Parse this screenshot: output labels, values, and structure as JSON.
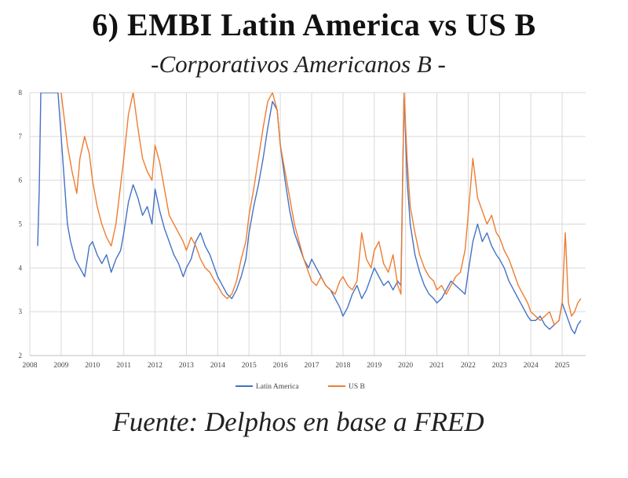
{
  "title": "6) EMBI Latin America vs US B",
  "subtitle": "-Corporativos Americanos B -",
  "source": "Fuente: Delphos en base a FRED",
  "chart_data": {
    "type": "line",
    "title": "",
    "xlabel": "",
    "ylabel": "",
    "xlim": [
      2008,
      2025.75
    ],
    "ylim": [
      2,
      8
    ],
    "xticks": [
      "2008",
      "2009",
      "2010",
      "2011",
      "2012",
      "2013",
      "2014",
      "2015",
      "2016",
      "2017",
      "2018",
      "2019",
      "2020",
      "2021",
      "2022",
      "2023",
      "2024",
      "2025"
    ],
    "yticks": [
      "2",
      "3",
      "4",
      "5",
      "6",
      "7",
      "8"
    ],
    "grid": true,
    "legend": "bottom",
    "series": [
      {
        "name": "Latin America",
        "color": "#4472C4",
        "x": [
          2008.25,
          2008.3,
          2008.35,
          2008.45,
          2008.5,
          2008.6,
          2008.75,
          2008.9,
          2009.0,
          2009.1,
          2009.2,
          2009.3,
          2009.45,
          2009.6,
          2009.75,
          2009.9,
          2010.0,
          2010.15,
          2010.3,
          2010.45,
          2010.6,
          2010.75,
          2010.9,
          2011.0,
          2011.15,
          2011.3,
          2011.45,
          2011.6,
          2011.75,
          2011.9,
          2012.0,
          2012.15,
          2012.3,
          2012.45,
          2012.6,
          2012.75,
          2012.9,
          2013.0,
          2013.15,
          2013.3,
          2013.45,
          2013.6,
          2013.75,
          2013.9,
          2014.0,
          2014.15,
          2014.3,
          2014.45,
          2014.6,
          2014.75,
          2014.9,
          2015.0,
          2015.15,
          2015.3,
          2015.45,
          2015.6,
          2015.75,
          2015.9,
          2016.0,
          2016.15,
          2016.3,
          2016.45,
          2016.6,
          2016.75,
          2016.9,
          2017.0,
          2017.15,
          2017.3,
          2017.45,
          2017.6,
          2017.75,
          2017.9,
          2018.0,
          2018.15,
          2018.3,
          2018.45,
          2018.6,
          2018.75,
          2018.9,
          2019.0,
          2019.15,
          2019.3,
          2019.45,
          2019.6,
          2019.75,
          2019.85,
          2019.95,
          2020.05,
          2020.15,
          2020.3,
          2020.45,
          2020.6,
          2020.75,
          2020.9,
          2021.0,
          2021.15,
          2021.3,
          2021.45,
          2021.6,
          2021.75,
          2021.9,
          2022.0,
          2022.15,
          2022.3,
          2022.45,
          2022.6,
          2022.75,
          2022.9,
          2023.0,
          2023.15,
          2023.3,
          2023.45,
          2023.6,
          2023.75,
          2023.9,
          2024.0,
          2024.15,
          2024.3,
          2024.45,
          2024.6,
          2024.75,
          2024.9,
          2025.0,
          2025.1,
          2025.2,
          2025.3,
          2025.4,
          2025.5,
          2025.6
        ],
        "y": [
          4.5,
          5.8,
          8.0,
          8.0,
          8.0,
          8.0,
          8.0,
          8.0,
          7.0,
          6.0,
          5.0,
          4.6,
          4.2,
          4.0,
          3.8,
          4.5,
          4.6,
          4.3,
          4.1,
          4.3,
          3.9,
          4.2,
          4.4,
          4.8,
          5.5,
          5.9,
          5.6,
          5.2,
          5.4,
          5.0,
          5.8,
          5.3,
          4.9,
          4.6,
          4.3,
          4.1,
          3.8,
          4.0,
          4.2,
          4.6,
          4.8,
          4.5,
          4.3,
          4.0,
          3.8,
          3.6,
          3.4,
          3.3,
          3.5,
          3.8,
          4.2,
          4.8,
          5.4,
          5.9,
          6.5,
          7.2,
          7.8,
          7.6,
          6.8,
          6.0,
          5.3,
          4.8,
          4.5,
          4.2,
          4.0,
          4.2,
          4.0,
          3.8,
          3.6,
          3.5,
          3.3,
          3.1,
          2.9,
          3.1,
          3.4,
          3.6,
          3.3,
          3.5,
          3.8,
          4.0,
          3.8,
          3.6,
          3.7,
          3.5,
          3.7,
          3.6,
          8.0,
          6.0,
          5.0,
          4.3,
          3.9,
          3.6,
          3.4,
          3.3,
          3.2,
          3.3,
          3.5,
          3.7,
          3.6,
          3.5,
          3.4,
          3.9,
          4.6,
          5.0,
          4.6,
          4.8,
          4.5,
          4.3,
          4.2,
          4.0,
          3.7,
          3.5,
          3.3,
          3.1,
          2.9,
          2.8,
          2.8,
          2.9,
          2.7,
          2.6,
          2.7,
          2.8,
          3.2,
          3.0,
          2.8,
          2.6,
          2.5,
          2.7,
          2.8
        ]
      },
      {
        "name": "US B",
        "color": "#ED7D31",
        "x": [
          2009.0,
          2009.1,
          2009.2,
          2009.35,
          2009.5,
          2009.6,
          2009.75,
          2009.9,
          2010.0,
          2010.15,
          2010.3,
          2010.45,
          2010.6,
          2010.75,
          2010.85,
          2011.0,
          2011.15,
          2011.3,
          2011.45,
          2011.6,
          2011.75,
          2011.9,
          2012.0,
          2012.15,
          2012.3,
          2012.45,
          2012.6,
          2012.75,
          2012.9,
          2013.0,
          2013.15,
          2013.3,
          2013.45,
          2013.6,
          2013.75,
          2013.9,
          2014.0,
          2014.15,
          2014.3,
          2014.45,
          2014.6,
          2014.75,
          2014.9,
          2015.0,
          2015.15,
          2015.3,
          2015.45,
          2015.6,
          2015.75,
          2015.9,
          2016.0,
          2016.15,
          2016.3,
          2016.45,
          2016.6,
          2016.75,
          2016.9,
          2017.0,
          2017.15,
          2017.3,
          2017.45,
          2017.6,
          2017.75,
          2017.9,
          2018.0,
          2018.15,
          2018.3,
          2018.45,
          2018.6,
          2018.75,
          2018.9,
          2019.0,
          2019.15,
          2019.3,
          2019.45,
          2019.6,
          2019.75,
          2019.85,
          2019.95,
          2020.05,
          2020.15,
          2020.3,
          2020.45,
          2020.6,
          2020.75,
          2020.9,
          2021.0,
          2021.15,
          2021.3,
          2021.45,
          2021.6,
          2021.75,
          2021.9,
          2022.0,
          2022.15,
          2022.3,
          2022.45,
          2022.6,
          2022.75,
          2022.9,
          2023.0,
          2023.15,
          2023.3,
          2023.45,
          2023.6,
          2023.75,
          2023.9,
          2024.0,
          2024.15,
          2024.3,
          2024.45,
          2024.6,
          2024.75,
          2024.9,
          2025.0,
          2025.1,
          2025.2,
          2025.3,
          2025.4,
          2025.5,
          2025.6
        ],
        "y": [
          8.0,
          7.4,
          6.8,
          6.2,
          5.7,
          6.5,
          7.0,
          6.6,
          6.0,
          5.4,
          5.0,
          4.7,
          4.5,
          5.0,
          5.6,
          6.5,
          7.5,
          8.0,
          7.2,
          6.5,
          6.2,
          6.0,
          6.8,
          6.4,
          5.8,
          5.2,
          5.0,
          4.8,
          4.6,
          4.4,
          4.7,
          4.5,
          4.2,
          4.0,
          3.9,
          3.7,
          3.6,
          3.4,
          3.3,
          3.4,
          3.7,
          4.2,
          4.6,
          5.2,
          5.8,
          6.5,
          7.2,
          7.8,
          8.0,
          7.6,
          6.8,
          6.2,
          5.6,
          5.0,
          4.6,
          4.2,
          3.9,
          3.7,
          3.6,
          3.8,
          3.6,
          3.5,
          3.4,
          3.7,
          3.8,
          3.6,
          3.5,
          3.7,
          4.8,
          4.2,
          4.0,
          4.4,
          4.6,
          4.1,
          3.9,
          4.3,
          3.6,
          3.4,
          8.0,
          6.5,
          5.4,
          4.8,
          4.3,
          4.0,
          3.8,
          3.7,
          3.5,
          3.6,
          3.4,
          3.6,
          3.8,
          3.9,
          4.4,
          5.2,
          6.5,
          5.6,
          5.3,
          5.0,
          5.2,
          4.8,
          4.7,
          4.4,
          4.2,
          3.9,
          3.6,
          3.4,
          3.2,
          3.0,
          2.9,
          2.8,
          2.9,
          3.0,
          2.7,
          2.8,
          3.2,
          4.8,
          3.2,
          2.9,
          3.0,
          3.2,
          3.3
        ]
      }
    ]
  }
}
